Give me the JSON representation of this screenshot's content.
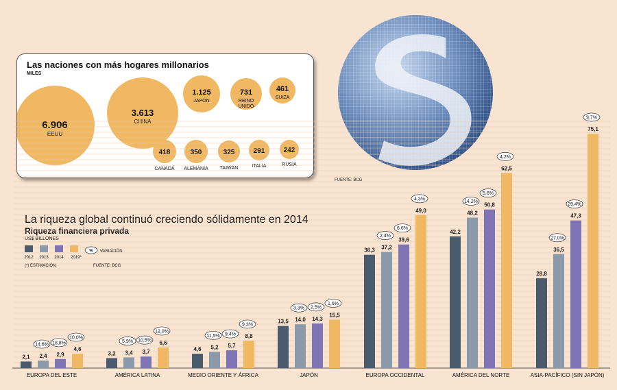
{
  "bubble_panel": {
    "title": "Las naciones con más hogares millonarios",
    "unit": "MILES",
    "source": "FUENTE: BCG"
  },
  "main": {
    "title": "La riqueza global continuó creciendo sólidamente en 2014",
    "subtitle": "Riqueza financiera privada",
    "unit": "US$ BILLONES",
    "legend_change": "VARIACIÓN",
    "legend_pct_symbol": "%",
    "note": "(*) ESTIMACIÓN",
    "source": "FUENTE: BCG"
  },
  "colors": {
    "background": "#f9e4d2",
    "bubble": "#f0b862",
    "s2012": "#4a5b6d",
    "s2013": "#8a9aaa",
    "s2014": "#7f74b4",
    "s2019": "#f0b862"
  },
  "chart_data": [
    {
      "type": "bubble",
      "title": "Las naciones con más hogares millonarios",
      "unit": "MILES",
      "items": [
        {
          "country": "EEUU",
          "value": 6906,
          "label": "6.906"
        },
        {
          "country": "CHINA",
          "value": 3613,
          "label": "3.613"
        },
        {
          "country": "JAPÓN",
          "value": 1125,
          "label": "1.125"
        },
        {
          "country": "REINO UNIDO",
          "value": 731,
          "label": "731"
        },
        {
          "country": "SUIZA",
          "value": 461,
          "label": "461"
        },
        {
          "country": "CANADÁ",
          "value": 418,
          "label": "418"
        },
        {
          "country": "ALEMANIA",
          "value": 350,
          "label": "350"
        },
        {
          "country": "TAIWÁN",
          "value": 325,
          "label": "325"
        },
        {
          "country": "ITALIA",
          "value": 291,
          "label": "291"
        },
        {
          "country": "RUSIA",
          "value": 242,
          "label": "242"
        }
      ]
    },
    {
      "type": "bar",
      "title": "La riqueza global continuó creciendo sólidamente en 2014",
      "subtitle": "Riqueza financiera privada",
      "ylabel": "US$ BILLONES",
      "ylim": [
        0,
        75.1
      ],
      "legend": [
        "2012",
        "2013",
        "2014",
        "2019*"
      ],
      "categories": [
        "EUROPA DEL ESTE",
        "AMÉRICA LATINA",
        "MEDIO ORIENTE Y ÁFRICA",
        "JAPÓN",
        "EUROPA OCCIDENTAL",
        "AMÉRICA DEL NORTE",
        "ASIA-PACÍFICO (SIN JAPÓN)"
      ],
      "series": [
        {
          "name": "2012",
          "values": [
            2.1,
            3.2,
            4.6,
            13.5,
            36.3,
            42.2,
            28.8
          ],
          "labels": [
            "2,1",
            "3,2",
            "4,6",
            "13,5",
            "36,3",
            "42,2",
            "28,8"
          ]
        },
        {
          "name": "2013",
          "values": [
            2.4,
            3.4,
            5.2,
            14.0,
            37.2,
            48.2,
            36.5
          ],
          "labels": [
            "2,4",
            "3,4",
            "5,2",
            "14,0",
            "37,2",
            "48,2",
            "36,5"
          ]
        },
        {
          "name": "2014",
          "values": [
            2.9,
            3.7,
            5.7,
            14.3,
            39.6,
            50.8,
            47.3
          ],
          "labels": [
            "2,9",
            "3,7",
            "5,7",
            "14,3",
            "39,6",
            "50,8",
            "47,3"
          ]
        },
        {
          "name": "2019*",
          "values": [
            4.6,
            6.6,
            8.8,
            15.5,
            49.0,
            62.5,
            75.1
          ],
          "labels": [
            "4,6",
            "6,6",
            "8,8",
            "15,5",
            "49,0",
            "62,5",
            "75,1"
          ]
        }
      ],
      "changes": [
        [
          "14,6%",
          "18,8%",
          "10,0%"
        ],
        [
          "5,9%",
          "10,5%",
          "12,0%"
        ],
        [
          "11,5%",
          "9,4%",
          "9,3%"
        ],
        [
          "3,3%",
          "2,5%",
          "1,6%"
        ],
        [
          "2,4%",
          "6,6%",
          "4,3%"
        ],
        [
          "14,2%",
          "5,6%",
          "4,2%"
        ],
        [
          "27,0%",
          "29,4%",
          "9,7%"
        ]
      ]
    }
  ]
}
